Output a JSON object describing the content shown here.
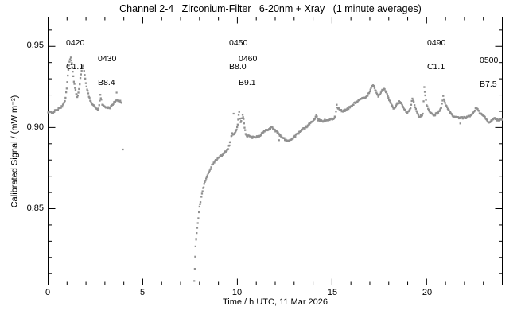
{
  "window": {
    "background": "#ffffff"
  },
  "chart_data": {
    "type": "scatter",
    "title": "Channel 2-4   Zirconium-Filter   6-20nm + Xray   (1 minute averages)",
    "xlabel": "Time / h UTC, 11 Mar 2026",
    "ylabel": "Calibrated Signal / (mW m⁻²)",
    "xlim": [
      0,
      24
    ],
    "ylim": [
      0.803,
      0.968
    ],
    "x_major_ticks": [
      0,
      5,
      10,
      15,
      20
    ],
    "x_tick_labels": [
      "0",
      "5",
      "10",
      "15",
      "20"
    ],
    "x_minor_step": 1,
    "y_major_ticks": [
      0.85,
      0.9,
      0.95
    ],
    "y_tick_labels": [
      "0.85",
      "0.90",
      "0.95"
    ],
    "y_minor_step": 0.01,
    "legend": "none",
    "grid": false,
    "marker_color": "#909090",
    "axis_color": "#000000",
    "annotations": [
      {
        "time": "0420",
        "flare": "C1.1"
      },
      {
        "time": "0430",
        "flare": "B8.4"
      },
      {
        "time": "0450",
        "flare": "B8.0"
      },
      {
        "time": "0460",
        "flare": "B9.1"
      },
      {
        "time": "0490",
        "flare": "C1.1"
      },
      {
        "time": "0500",
        "flare": "B7.5"
      }
    ],
    "series": [
      {
        "name": "morning-segment",
        "interpolate": true,
        "points": [
          [
            0.0,
            0.9092
          ],
          [
            0.1,
            0.9096
          ],
          [
            0.2,
            0.909
          ],
          [
            0.3,
            0.9098
          ],
          [
            0.42,
            0.9106
          ],
          [
            0.55,
            0.9114
          ],
          [
            0.68,
            0.9124
          ],
          [
            0.78,
            0.9138
          ],
          [
            0.85,
            0.915
          ],
          [
            0.92,
            0.9185
          ],
          [
            0.98,
            0.9245
          ],
          [
            1.04,
            0.932
          ],
          [
            1.1,
            0.9385
          ],
          [
            1.16,
            0.9425
          ],
          [
            1.2,
            0.943
          ],
          [
            1.25,
            0.9395
          ],
          [
            1.3,
            0.934
          ],
          [
            1.36,
            0.9285
          ],
          [
            1.42,
            0.9245
          ],
          [
            1.48,
            0.921
          ],
          [
            1.54,
            0.919
          ],
          [
            1.6,
            0.9215
          ],
          [
            1.67,
            0.927
          ],
          [
            1.74,
            0.933
          ],
          [
            1.8,
            0.9372
          ],
          [
            1.85,
            0.938
          ],
          [
            1.9,
            0.9345
          ],
          [
            1.96,
            0.93
          ],
          [
            2.03,
            0.9255
          ],
          [
            2.12,
            0.9205
          ],
          [
            2.22,
            0.9168
          ],
          [
            2.32,
            0.915
          ],
          [
            2.42,
            0.9135
          ],
          [
            2.52,
            0.9122
          ],
          [
            2.62,
            0.911
          ],
          [
            2.7,
            0.9135
          ],
          [
            2.76,
            0.9198
          ],
          [
            2.81,
            0.917
          ],
          [
            2.86,
            0.914
          ],
          [
            2.95,
            0.9132
          ],
          [
            3.05,
            0.9128
          ],
          [
            3.15,
            0.9122
          ],
          [
            3.25,
            0.9118
          ],
          [
            3.35,
            0.9132
          ],
          [
            3.45,
            0.915
          ],
          [
            3.55,
            0.916
          ],
          [
            3.65,
            0.9168
          ],
          [
            3.78,
            0.9165
          ],
          [
            3.88,
            0.9152
          ]
        ]
      },
      {
        "name": "recovery-sparse",
        "interpolate": false,
        "points": [
          [
            7.72,
            0.8055
          ],
          [
            7.75,
            0.813
          ],
          [
            7.77,
            0.8205
          ],
          [
            7.79,
            0.8268
          ],
          [
            7.82,
            0.831
          ],
          [
            7.85,
            0.835
          ],
          [
            7.88,
            0.8382
          ],
          [
            7.91,
            0.8412
          ],
          [
            7.94,
            0.8442
          ],
          [
            7.97,
            0.8478
          ]
        ]
      },
      {
        "name": "main-segment",
        "interpolate": true,
        "points": [
          [
            8.0,
            0.851
          ],
          [
            8.05,
            0.8545
          ],
          [
            8.1,
            0.8578
          ],
          [
            8.16,
            0.8608
          ],
          [
            8.22,
            0.8636
          ],
          [
            8.28,
            0.866
          ],
          [
            8.35,
            0.8684
          ],
          [
            8.42,
            0.8706
          ],
          [
            8.5,
            0.8728
          ],
          [
            8.58,
            0.8748
          ],
          [
            8.66,
            0.8766
          ],
          [
            8.75,
            0.8782
          ],
          [
            8.85,
            0.8796
          ],
          [
            8.95,
            0.8808
          ],
          [
            9.05,
            0.8818
          ],
          [
            9.15,
            0.8828
          ],
          [
            9.25,
            0.8838
          ],
          [
            9.35,
            0.885
          ],
          [
            9.45,
            0.8862
          ],
          [
            9.52,
            0.8872
          ],
          [
            9.58,
            0.8895
          ],
          [
            9.63,
            0.8915
          ],
          [
            9.68,
            0.8945
          ],
          [
            9.73,
            0.8962
          ],
          [
            9.78,
            0.8958
          ],
          [
            9.84,
            0.8962
          ],
          [
            9.9,
            0.8972
          ],
          [
            9.96,
            0.8985
          ],
          [
            10.02,
            0.902
          ],
          [
            10.07,
            0.9075
          ],
          [
            10.1,
            0.9092
          ],
          [
            10.14,
            0.9055
          ],
          [
            10.18,
            0.9038
          ],
          [
            10.23,
            0.9052
          ],
          [
            10.28,
            0.9078
          ],
          [
            10.33,
            0.9048
          ],
          [
            10.38,
            0.8995
          ],
          [
            10.44,
            0.8965
          ],
          [
            10.5,
            0.8948
          ],
          [
            10.58,
            0.8952
          ],
          [
            10.66,
            0.8944
          ],
          [
            10.76,
            0.894
          ],
          [
            10.88,
            0.8942
          ],
          [
            11.0,
            0.8944
          ],
          [
            11.12,
            0.8946
          ],
          [
            11.25,
            0.8958
          ],
          [
            11.38,
            0.8972
          ],
          [
            11.5,
            0.8982
          ],
          [
            11.62,
            0.899
          ],
          [
            11.74,
            0.8996
          ],
          [
            11.85,
            0.9002
          ],
          [
            11.95,
            0.8988
          ],
          [
            12.05,
            0.8975
          ],
          [
            12.18,
            0.8962
          ],
          [
            12.3,
            0.8945
          ],
          [
            12.45,
            0.8932
          ],
          [
            12.6,
            0.8922
          ],
          [
            12.72,
            0.8918
          ],
          [
            12.85,
            0.8928
          ],
          [
            13.0,
            0.8942
          ],
          [
            13.15,
            0.8958
          ],
          [
            13.3,
            0.8972
          ],
          [
            13.45,
            0.8988
          ],
          [
            13.6,
            0.9
          ],
          [
            13.75,
            0.9015
          ],
          [
            13.9,
            0.9032
          ],
          [
            14.0,
            0.9042
          ],
          [
            14.1,
            0.9052
          ],
          [
            14.17,
            0.9076
          ],
          [
            14.24,
            0.905
          ],
          [
            14.35,
            0.9042
          ],
          [
            14.5,
            0.904
          ],
          [
            14.65,
            0.9044
          ],
          [
            14.8,
            0.9048
          ],
          [
            14.95,
            0.905
          ],
          [
            15.08,
            0.9055
          ],
          [
            15.18,
            0.9068
          ],
          [
            15.25,
            0.9135
          ],
          [
            15.32,
            0.9118
          ],
          [
            15.42,
            0.9108
          ],
          [
            15.55,
            0.91
          ],
          [
            15.68,
            0.9106
          ],
          [
            15.8,
            0.9112
          ],
          [
            15.95,
            0.9125
          ],
          [
            16.1,
            0.914
          ],
          [
            16.25,
            0.9155
          ],
          [
            16.4,
            0.9168
          ],
          [
            16.55,
            0.9175
          ],
          [
            16.7,
            0.918
          ],
          [
            16.85,
            0.9195
          ],
          [
            17.0,
            0.9218
          ],
          [
            17.1,
            0.9252
          ],
          [
            17.17,
            0.9262
          ],
          [
            17.25,
            0.924
          ],
          [
            17.35,
            0.9215
          ],
          [
            17.45,
            0.9195
          ],
          [
            17.55,
            0.9205
          ],
          [
            17.65,
            0.9228
          ],
          [
            17.75,
            0.9238
          ],
          [
            17.85,
            0.9222
          ],
          [
            17.95,
            0.919
          ],
          [
            18.05,
            0.9166
          ],
          [
            18.15,
            0.9135
          ],
          [
            18.25,
            0.9118
          ],
          [
            18.35,
            0.9128
          ],
          [
            18.45,
            0.9145
          ],
          [
            18.55,
            0.9158
          ],
          [
            18.65,
            0.9148
          ],
          [
            18.75,
            0.913
          ],
          [
            18.85,
            0.911
          ],
          [
            18.95,
            0.9092
          ],
          [
            19.05,
            0.9095
          ],
          [
            19.15,
            0.912
          ],
          [
            19.25,
            0.918
          ],
          [
            19.32,
            0.916
          ],
          [
            19.4,
            0.9125
          ],
          [
            19.5,
            0.9095
          ],
          [
            19.6,
            0.9068
          ],
          [
            19.7,
            0.9072
          ],
          [
            19.8,
            0.908
          ],
          [
            19.88,
            0.9245
          ],
          [
            19.93,
            0.9195
          ],
          [
            20.0,
            0.914
          ],
          [
            20.08,
            0.9112
          ],
          [
            20.18,
            0.9092
          ],
          [
            20.3,
            0.908
          ],
          [
            20.42,
            0.9076
          ],
          [
            20.55,
            0.9088
          ],
          [
            20.68,
            0.9105
          ],
          [
            20.78,
            0.9118
          ],
          [
            20.88,
            0.9198
          ],
          [
            20.95,
            0.9158
          ],
          [
            21.05,
            0.9128
          ],
          [
            21.15,
            0.9108
          ],
          [
            21.28,
            0.9085
          ],
          [
            21.4,
            0.9068
          ],
          [
            21.52,
            0.9062
          ],
          [
            21.65,
            0.906
          ],
          [
            21.8,
            0.9058
          ],
          [
            21.95,
            0.906
          ],
          [
            22.1,
            0.9062
          ],
          [
            22.25,
            0.9068
          ],
          [
            22.4,
            0.9082
          ],
          [
            22.55,
            0.9108
          ],
          [
            22.62,
            0.9122
          ],
          [
            22.7,
            0.911
          ],
          [
            22.8,
            0.9092
          ],
          [
            22.92,
            0.9078
          ],
          [
            23.05,
            0.9068
          ],
          [
            23.18,
            0.9045
          ],
          [
            23.3,
            0.9028
          ],
          [
            23.42,
            0.9045
          ],
          [
            23.55,
            0.9058
          ],
          [
            23.68,
            0.905
          ],
          [
            23.8,
            0.9045
          ],
          [
            23.92,
            0.9052
          ],
          [
            23.98,
            0.9048
          ]
        ]
      }
    ],
    "outliers": [
      [
        3.62,
        0.9215
      ],
      [
        3.95,
        0.8865
      ],
      [
        9.8,
        0.9085
      ],
      [
        12.2,
        0.8922
      ],
      [
        21.78,
        0.9025
      ]
    ]
  }
}
